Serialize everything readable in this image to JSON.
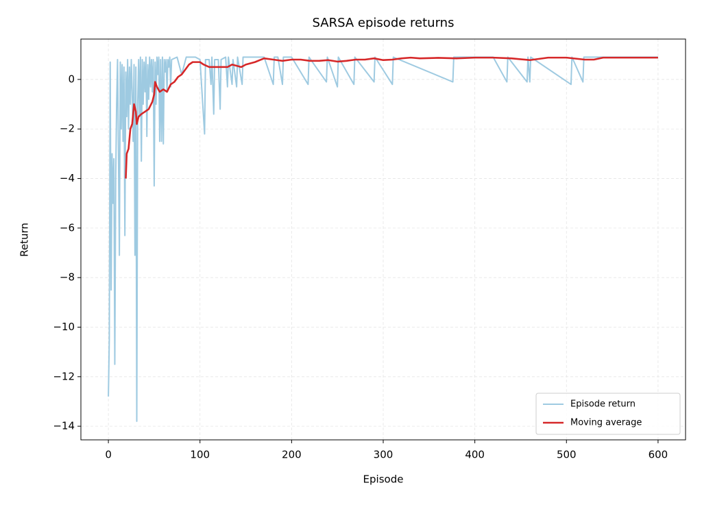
{
  "chart_data": {
    "type": "line",
    "title": "SARSA episode returns",
    "x_label": "Episode",
    "y_label": "Return",
    "xlim": [
      -30,
      630
    ],
    "ylim": [
      -14.55,
      1.63
    ],
    "xticks": [
      0,
      100,
      200,
      300,
      400,
      500,
      600
    ],
    "yticks": [
      {
        "value": -14,
        "label": "−14"
      },
      {
        "value": -12,
        "label": "−12"
      },
      {
        "value": -10,
        "label": "−10"
      },
      {
        "value": -8,
        "label": "−8"
      },
      {
        "value": -6,
        "label": "−6"
      },
      {
        "value": -4,
        "label": "−4"
      },
      {
        "value": -2,
        "label": "−2"
      },
      0
    ],
    "grid": true,
    "legend": "lower right",
    "series": [
      {
        "name": "Episode return",
        "color": "#9ecae1",
        "x": [
          0,
          1,
          2,
          3,
          4,
          5,
          6,
          7,
          8,
          9,
          10,
          11,
          12,
          13,
          14,
          15,
          16,
          17,
          18,
          19,
          20,
          21,
          22,
          23,
          24,
          25,
          26,
          27,
          28,
          29,
          30,
          31,
          32,
          33,
          34,
          35,
          36,
          37,
          38,
          39,
          40,
          41,
          42,
          43,
          44,
          45,
          46,
          47,
          48,
          49,
          50,
          51,
          52,
          53,
          54,
          55,
          56,
          57,
          58,
          59,
          60,
          61,
          62,
          63,
          64,
          65,
          66,
          67,
          68,
          69,
          75,
          80,
          85,
          90,
          95,
          100,
          105,
          106,
          110,
          112,
          113,
          115,
          116,
          120,
          122,
          123,
          128,
          130,
          131,
          135,
          136,
          140,
          141,
          146,
          147,
          150,
          160,
          170,
          180,
          181,
          185,
          190,
          191,
          200,
          218,
          219,
          238,
          239,
          250,
          251,
          268,
          269,
          290,
          291,
          310,
          311,
          376,
          377,
          420,
          435,
          436,
          457,
          458,
          460,
          461,
          505,
          506,
          518,
          519,
          600
        ],
        "values": [
          -12.8,
          -10.5,
          0.7,
          -8.5,
          -3,
          -5,
          -3.2,
          -11.5,
          -4,
          -1,
          0.8,
          -3,
          -7.1,
          0.7,
          -2,
          0.6,
          -2.5,
          0.5,
          -6.3,
          0.3,
          -1.5,
          0.8,
          -2,
          0.5,
          -1,
          0.8,
          -0.5,
          -2.5,
          0.6,
          -7.1,
          0.5,
          -13.8,
          -1,
          0.8,
          -1.5,
          0.9,
          -3.3,
          0.8,
          -1,
          0.7,
          -0.5,
          0.9,
          -2.3,
          0.6,
          -0.8,
          0.9,
          -0.3,
          0.8,
          -0.5,
          0.8,
          -4.3,
          0.7,
          -1,
          0.9,
          0.2,
          0.9,
          -2.5,
          0.8,
          -2.5,
          0.9,
          -2.6,
          0.8,
          0.3,
          0.8,
          -0.5,
          0.8,
          0.5,
          0.9,
          -0.3,
          0.8,
          0.9,
          0.2,
          0.9,
          0.9,
          0.9,
          0.8,
          -2.2,
          0.8,
          0.8,
          -0.2,
          0.9,
          -1.4,
          0.8,
          0.8,
          -1.2,
          0.8,
          0.9,
          -0.3,
          0.9,
          -0.2,
          0.8,
          -0.3,
          0.9,
          -0.2,
          0.9,
          0.9,
          0.9,
          0.9,
          -0.2,
          0.9,
          0.9,
          -0.2,
          0.9,
          0.9,
          -0.2,
          0.9,
          -0.1,
          0.9,
          -0.3,
          0.9,
          -0.2,
          0.9,
          -0.1,
          0.9,
          -0.2,
          0.9,
          -0.1,
          0.9,
          0.9,
          -0.1,
          0.9,
          -0.1,
          0.9,
          -0.1,
          0.9,
          -0.2,
          0.9,
          -0.1,
          0.9,
          0.9
        ]
      },
      {
        "name": "Moving average",
        "color": "#d62728",
        "x": [
          19,
          20,
          22,
          24,
          26,
          28,
          30,
          31,
          33,
          36,
          40,
          44,
          48,
          50,
          51,
          53,
          56,
          60,
          64,
          68,
          72,
          76,
          80,
          84,
          88,
          92,
          96,
          100,
          104,
          110,
          120,
          130,
          135,
          140,
          145,
          150,
          160,
          170,
          180,
          190,
          200,
          210,
          220,
          230,
          240,
          250,
          260,
          270,
          280,
          290,
          300,
          310,
          320,
          330,
          340,
          360,
          380,
          400,
          420,
          440,
          460,
          480,
          500,
          520,
          530,
          540,
          600
        ],
        "values": [
          -4,
          -3,
          -2.8,
          -2,
          -1.8,
          -1,
          -1.3,
          -1.8,
          -1.5,
          -1.4,
          -1.3,
          -1.2,
          -0.9,
          -0.6,
          -0.1,
          -0.3,
          -0.5,
          -0.4,
          -0.5,
          -0.2,
          -0.1,
          0.1,
          0.2,
          0.4,
          0.6,
          0.7,
          0.7,
          0.7,
          0.6,
          0.5,
          0.5,
          0.5,
          0.6,
          0.55,
          0.5,
          0.6,
          0.7,
          0.85,
          0.8,
          0.75,
          0.8,
          0.8,
          0.75,
          0.75,
          0.78,
          0.72,
          0.75,
          0.8,
          0.8,
          0.85,
          0.78,
          0.8,
          0.85,
          0.88,
          0.85,
          0.87,
          0.85,
          0.88,
          0.88,
          0.85,
          0.78,
          0.88,
          0.88,
          0.8,
          0.8,
          0.88,
          0.88
        ]
      }
    ]
  }
}
